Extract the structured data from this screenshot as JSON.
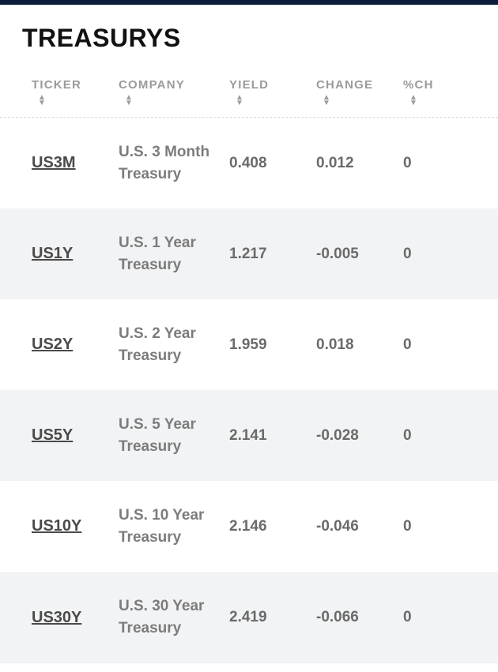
{
  "title": "TREASURYS",
  "columns": [
    {
      "key": "ticker",
      "label": "TICKER"
    },
    {
      "key": "company",
      "label": "COMPANY"
    },
    {
      "key": "yield",
      "label": "YIELD"
    },
    {
      "key": "change",
      "label": "CHANGE"
    },
    {
      "key": "pctch",
      "label": "%CH"
    }
  ],
  "rows": [
    {
      "ticker": "US3M",
      "company": "U.S. 3 Month Treasury",
      "yield": "0.408",
      "change": "0.012",
      "pctch": "0"
    },
    {
      "ticker": "US1Y",
      "company": "U.S. 1 Year Treasury",
      "yield": "1.217",
      "change": "-0.005",
      "pctch": "0"
    },
    {
      "ticker": "US2Y",
      "company": "U.S. 2 Year Treasury",
      "yield": "1.959",
      "change": "0.018",
      "pctch": "0"
    },
    {
      "ticker": "US5Y",
      "company": "U.S. 5 Year Treasury",
      "yield": "2.141",
      "change": "-0.028",
      "pctch": "0"
    },
    {
      "ticker": "US10Y",
      "company": "U.S. 10 Year Treasury",
      "yield": "2.146",
      "change": "-0.046",
      "pctch": "0"
    },
    {
      "ticker": "US30Y",
      "company": "U.S. 30 Year Treasury",
      "yield": "2.419",
      "change": "-0.066",
      "pctch": "0"
    }
  ]
}
